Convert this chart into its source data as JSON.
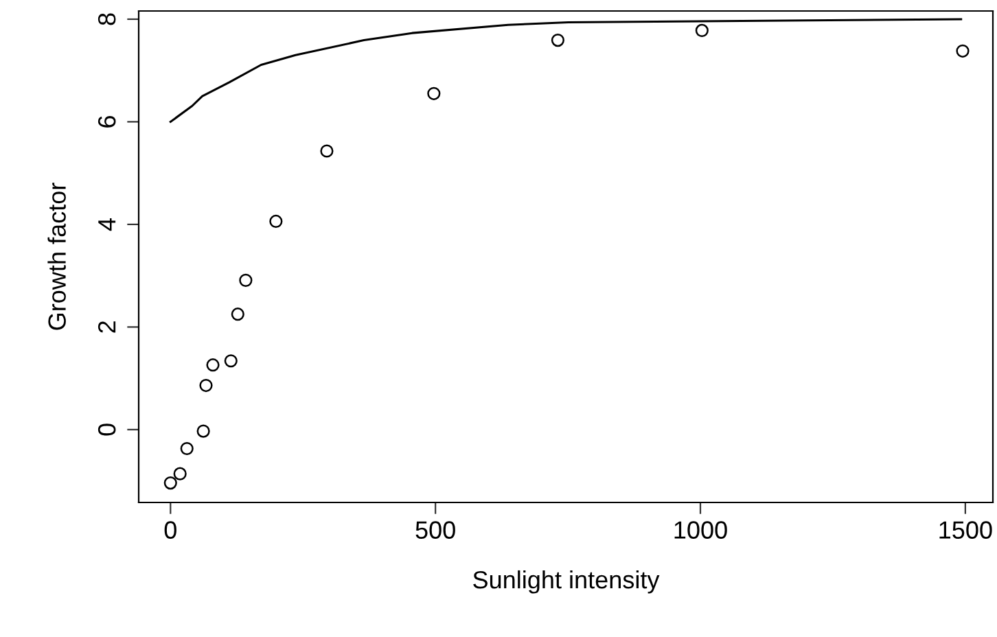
{
  "chart_data": {
    "type": "scatter",
    "xlabel": "Sunlight intensity",
    "ylabel": "Growth factor",
    "xlim": [
      -60,
      1552
    ],
    "ylim": [
      -1.42,
      8.16
    ],
    "xticks": [
      0,
      500,
      1000,
      1500
    ],
    "yticks": [
      0,
      2,
      4,
      6,
      8
    ],
    "grid": false,
    "legend": false,
    "marker": "circle",
    "series": [
      {
        "color": "#000000",
        "x": [
          0,
          18,
          31,
          62,
          67,
          80,
          114,
          127,
          142,
          199,
          295,
          497,
          731,
          1003,
          1495
        ],
        "values": [
          -1.04,
          -0.86,
          -0.37,
          -0.03,
          0.86,
          1.26,
          1.34,
          2.25,
          2.91,
          4.06,
          5.43,
          6.55,
          7.59,
          7.78,
          7.38
        ]
      },
      {
        "type": "line",
        "color": "#000000",
        "marker": "none",
        "line_style": "solid",
        "x": [
          0,
          41,
          60,
          111,
          171,
          236,
          365,
          456,
          637,
          751,
          1492
        ],
        "values": [
          6.0,
          6.31,
          6.5,
          6.77,
          7.11,
          7.3,
          7.59,
          7.73,
          7.89,
          7.94,
          8.0
        ]
      }
    ]
  }
}
